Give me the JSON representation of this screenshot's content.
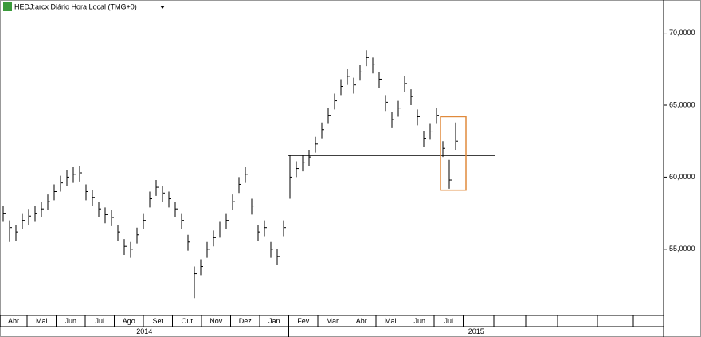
{
  "chart_data": {
    "type": "hlc",
    "title": "HEDJ:arcx Diário Hora Local (TMG+0)",
    "categories": [
      null,
      null,
      null,
      null,
      null,
      null,
      null,
      null,
      null,
      null,
      null,
      null,
      null,
      null,
      null,
      null,
      null,
      null,
      null,
      null,
      null,
      null,
      null,
      null,
      null,
      null,
      null,
      null,
      null,
      null,
      null,
      null,
      null,
      null,
      null,
      null,
      null,
      null,
      null,
      null,
      null,
      null,
      null,
      null,
      null,
      null,
      null,
      null,
      null,
      null,
      null,
      null,
      null,
      null,
      null,
      null,
      null,
      null,
      null,
      null,
      null,
      null,
      null,
      null,
      null,
      null,
      null,
      null,
      null,
      null,
      null,
      null
    ],
    "high": [
      58000,
      57000,
      56700,
      57500,
      57800,
      58000,
      58300,
      58800,
      59500,
      60100,
      60500,
      60700,
      60800,
      59500,
      59100,
      58300,
      57900,
      57700,
      56700,
      55700,
      55500,
      56500,
      57500,
      59000,
      59800,
      59400,
      59000,
      58300,
      57500,
      56000,
      53800,
      54300,
      55500,
      56300,
      56900,
      57500,
      58800,
      60000,
      60700,
      58500,
      56700,
      57000,
      55500,
      55000,
      57000,
      61500,
      61100,
      61500,
      61900,
      62800,
      63800,
      64800,
      65800,
      66800,
      67500,
      66900,
      67800,
      68800,
      68300,
      67300,
      65700,
      64500,
      65300,
      67000,
      66100,
      64700,
      63200,
      63700,
      64800,
      62500,
      61200,
      63800
    ],
    "low": [
      56900,
      55500,
      55600,
      56400,
      56700,
      56900,
      57200,
      57700,
      58400,
      59000,
      59400,
      59600,
      59700,
      58400,
      58000,
      57200,
      56800,
      56600,
      55600,
      54600,
      54400,
      55400,
      56400,
      57900,
      58700,
      58300,
      57900,
      57200,
      56400,
      54900,
      51600,
      53200,
      54400,
      55200,
      55800,
      56400,
      57700,
      58900,
      59600,
      57400,
      55600,
      55900,
      54400,
      53900,
      55900,
      58500,
      60000,
      60400,
      60800,
      61700,
      62700,
      63700,
      64700,
      65700,
      66400,
      65800,
      66700,
      67700,
      67200,
      66200,
      64600,
      63400,
      64200,
      65900,
      65000,
      63600,
      62100,
      62600,
      63700,
      61400,
      59200,
      61900
    ],
    "close": [
      57500,
      56500,
      56200,
      57000,
      57300,
      57500,
      57800,
      58300,
      59000,
      59600,
      60000,
      60200,
      60300,
      59000,
      58600,
      57800,
      57400,
      57200,
      56200,
      55200,
      55000,
      56000,
      57000,
      58500,
      59300,
      58900,
      58500,
      57800,
      57000,
      55500,
      53300,
      53800,
      55000,
      55800,
      56400,
      57000,
      58300,
      59500,
      60200,
      58000,
      56200,
      56500,
      55000,
      54500,
      56500,
      60000,
      60600,
      61000,
      61400,
      62300,
      63300,
      64300,
      65300,
      66300,
      67000,
      66400,
      67300,
      68300,
      67800,
      66800,
      65200,
      64000,
      64800,
      66500,
      65600,
      64200,
      62700,
      63200,
      64300,
      62000,
      59800,
      62500
    ],
    "color": "#000000",
    "ylim": [
      50400,
      72300
    ],
    "yticks": [
      {
        "value": 55000,
        "label": "55,0000"
      },
      {
        "value": 60000,
        "label": "60,0000"
      },
      {
        "value": 65000,
        "label": "65,0000"
      },
      {
        "value": 70000,
        "label": "70,0000"
      }
    ],
    "hline": 61500,
    "highlight": {
      "ylim": [
        59100,
        64200
      ],
      "color": "#e08a3c"
    },
    "months": [
      "Abr",
      "Mai",
      "Jun",
      "Jul",
      "Ago",
      "Set",
      "Out",
      "Nov",
      "Dez",
      "Jan",
      "Fev",
      "Mar",
      "Abr",
      "Mai",
      "Jun",
      "Jul"
    ],
    "years": [
      "2014",
      "2015"
    ]
  }
}
